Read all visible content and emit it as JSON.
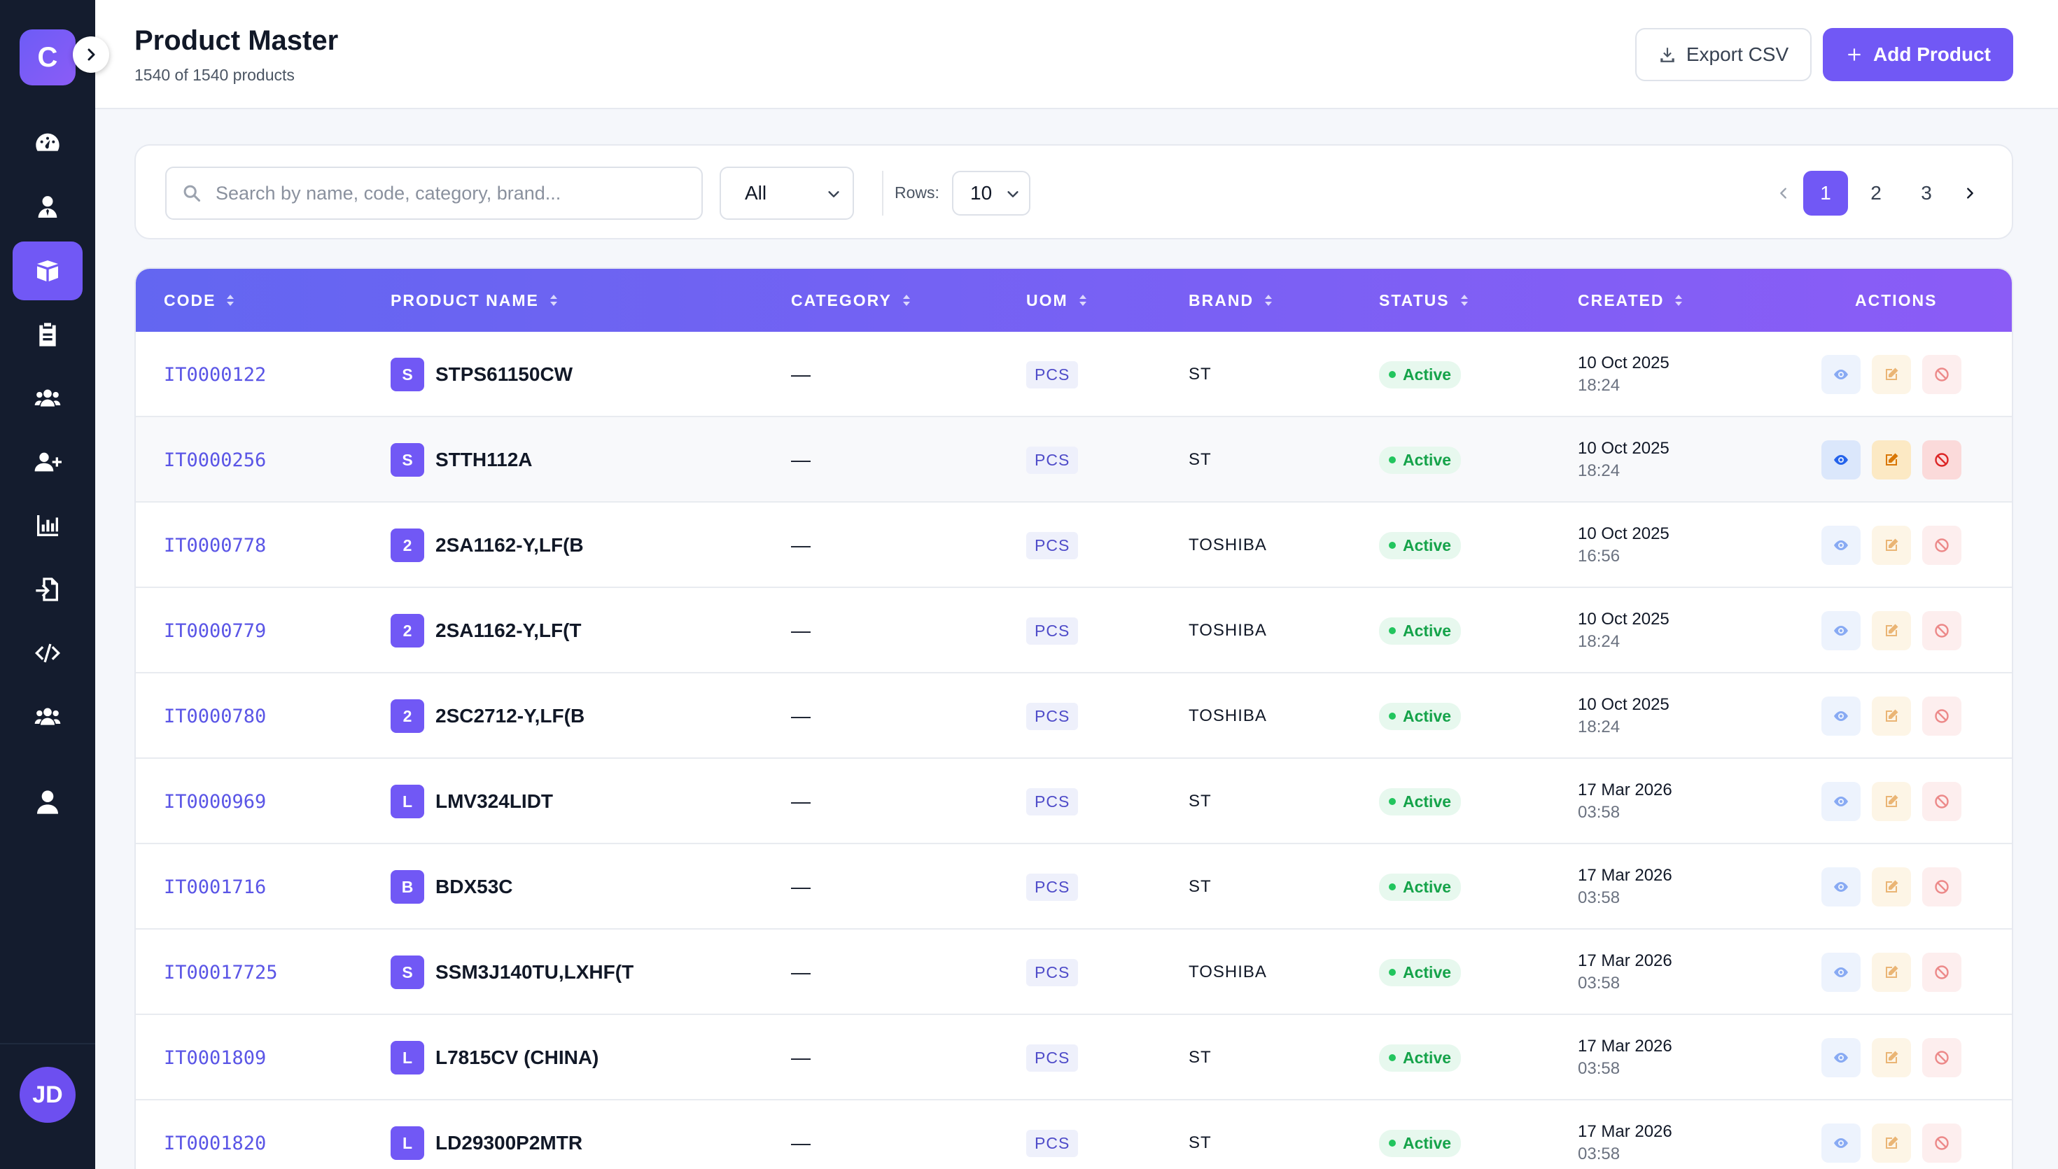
{
  "sidebar": {
    "logo_letter": "C",
    "nav_items": [
      {
        "icon": "dashboard-icon",
        "active": false
      },
      {
        "icon": "user-tie-icon",
        "active": false
      },
      {
        "icon": "box-icon",
        "active": true
      },
      {
        "icon": "clipboard-icon",
        "active": false
      },
      {
        "icon": "users-icon",
        "active": false
      },
      {
        "icon": "user-plus-icon",
        "active": false
      },
      {
        "icon": "bar-chart-icon",
        "active": false
      },
      {
        "icon": "file-import-icon",
        "active": false
      },
      {
        "icon": "code-icon",
        "active": false
      },
      {
        "icon": "users-group-icon",
        "active": false
      },
      {
        "icon": "user-icon",
        "active": false
      }
    ],
    "avatar_initials": "JD"
  },
  "header": {
    "title": "Product Master",
    "subtitle": "1540 of 1540 products",
    "export_label": "Export CSV",
    "add_label": "Add Product"
  },
  "filters": {
    "search_placeholder": "Search by name, code, category, brand...",
    "status_value": "All",
    "rows_label": "Rows:",
    "rows_value": "10",
    "pages": [
      "1",
      "2",
      "3"
    ],
    "current_page": "1"
  },
  "table": {
    "columns": [
      "CODE",
      "PRODUCT NAME",
      "CATEGORY",
      "UOM",
      "BRAND",
      "STATUS",
      "CREATED",
      "ACTIONS"
    ],
    "rows": [
      {
        "code": "IT0000122",
        "initial": "S",
        "name": "STPS61150CW",
        "category": "—",
        "uom": "PCS",
        "brand": "ST",
        "status": "Active",
        "date": "10 Oct 2025",
        "time": "18:24"
      },
      {
        "code": "IT0000256",
        "initial": "S",
        "name": "STTH112A",
        "category": "—",
        "uom": "PCS",
        "brand": "ST",
        "status": "Active",
        "date": "10 Oct 2025",
        "time": "18:24"
      },
      {
        "code": "IT0000778",
        "initial": "2",
        "name": "2SA1162-Y,LF(B",
        "category": "—",
        "uom": "PCS",
        "brand": "TOSHIBA",
        "status": "Active",
        "date": "10 Oct 2025",
        "time": "16:56"
      },
      {
        "code": "IT0000779",
        "initial": "2",
        "name": "2SA1162-Y,LF(T",
        "category": "—",
        "uom": "PCS",
        "brand": "TOSHIBA",
        "status": "Active",
        "date": "10 Oct 2025",
        "time": "18:24"
      },
      {
        "code": "IT0000780",
        "initial": "2",
        "name": "2SC2712-Y,LF(B",
        "category": "—",
        "uom": "PCS",
        "brand": "TOSHIBA",
        "status": "Active",
        "date": "10 Oct 2025",
        "time": "18:24"
      },
      {
        "code": "IT0000969",
        "initial": "L",
        "name": "LMV324LIDT",
        "category": "—",
        "uom": "PCS",
        "brand": "ST",
        "status": "Active",
        "date": "17 Mar 2026",
        "time": "03:58"
      },
      {
        "code": "IT0001716",
        "initial": "B",
        "name": "BDX53C",
        "category": "—",
        "uom": "PCS",
        "brand": "ST",
        "status": "Active",
        "date": "17 Mar 2026",
        "time": "03:58"
      },
      {
        "code": "IT00017725",
        "initial": "S",
        "name": "SSM3J140TU,LXHF(T",
        "category": "—",
        "uom": "PCS",
        "brand": "TOSHIBA",
        "status": "Active",
        "date": "17 Mar 2026",
        "time": "03:58"
      },
      {
        "code": "IT0001809",
        "initial": "L",
        "name": "L7815CV (CHINA)",
        "category": "—",
        "uom": "PCS",
        "brand": "ST",
        "status": "Active",
        "date": "17 Mar 2026",
        "time": "03:58"
      },
      {
        "code": "IT0001820",
        "initial": "L",
        "name": "LD29300P2MTR",
        "category": "—",
        "uom": "PCS",
        "brand": "ST",
        "status": "Active",
        "date": "17 Mar 2026",
        "time": "03:58"
      }
    ],
    "hovered_row": 1
  },
  "colors": {
    "accent": "#7158f5",
    "sidebar_bg": "#141c2e",
    "header_gradient_start": "#6366f1",
    "header_gradient_end": "#8b5cf6",
    "status_active": "#15a34a",
    "link": "#5a55e6"
  }
}
